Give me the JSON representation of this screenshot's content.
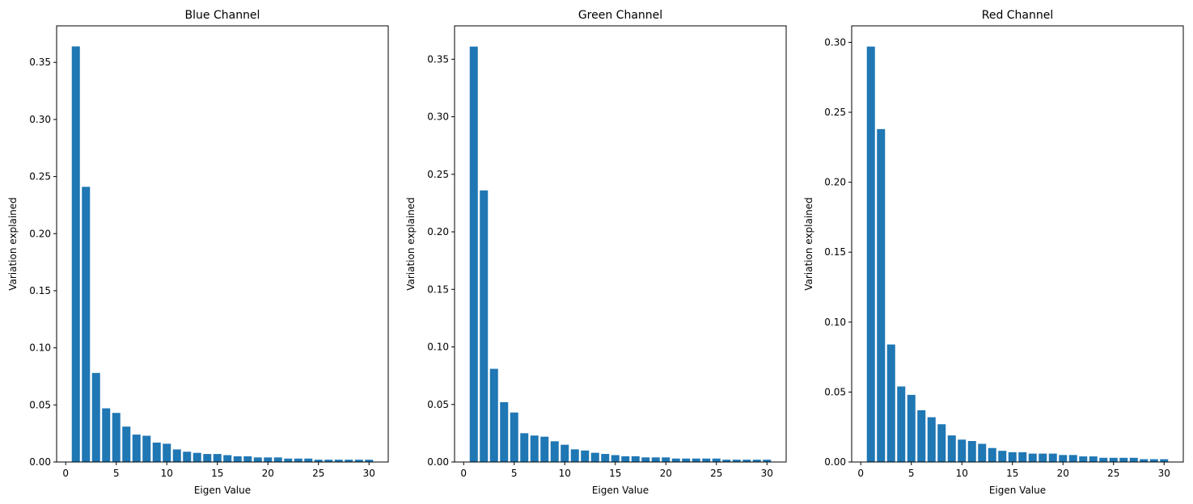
{
  "chart_data": [
    {
      "type": "bar",
      "title": "Blue Channel",
      "xlabel": "Eigen Value",
      "ylabel": "Variation explained",
      "xlim": [
        -0.9,
        31.9
      ],
      "ylim": [
        0,
        0.382
      ],
      "xticks": [
        0,
        5,
        10,
        15,
        20,
        25,
        30
      ],
      "yticks": [
        0.0,
        0.05,
        0.1,
        0.15,
        0.2,
        0.25,
        0.3,
        0.35
      ],
      "ytick_labels": [
        "0.00",
        "0.05",
        "0.10",
        "0.15",
        "0.20",
        "0.25",
        "0.30",
        "0.35"
      ],
      "color": "#1f77b4",
      "x": [
        1,
        2,
        3,
        4,
        5,
        6,
        7,
        8,
        9,
        10,
        11,
        12,
        13,
        14,
        15,
        16,
        17,
        18,
        19,
        20,
        21,
        22,
        23,
        24,
        25,
        26,
        27,
        28,
        29,
        30
      ],
      "values": [
        0.364,
        0.241,
        0.078,
        0.047,
        0.043,
        0.031,
        0.024,
        0.023,
        0.017,
        0.016,
        0.011,
        0.009,
        0.008,
        0.007,
        0.007,
        0.006,
        0.005,
        0.005,
        0.004,
        0.004,
        0.004,
        0.003,
        0.003,
        0.003,
        0.002,
        0.002,
        0.002,
        0.002,
        0.002,
        0.002
      ]
    },
    {
      "type": "bar",
      "title": "Green Channel",
      "xlabel": "Eigen Value",
      "ylabel": "Variation explained",
      "xlim": [
        -0.9,
        31.9
      ],
      "ylim": [
        0,
        0.379
      ],
      "xticks": [
        0,
        5,
        10,
        15,
        20,
        25,
        30
      ],
      "yticks": [
        0.0,
        0.05,
        0.1,
        0.15,
        0.2,
        0.25,
        0.3,
        0.35
      ],
      "ytick_labels": [
        "0.00",
        "0.05",
        "0.10",
        "0.15",
        "0.20",
        "0.25",
        "0.30",
        "0.35"
      ],
      "color": "#1f77b4",
      "x": [
        1,
        2,
        3,
        4,
        5,
        6,
        7,
        8,
        9,
        10,
        11,
        12,
        13,
        14,
        15,
        16,
        17,
        18,
        19,
        20,
        21,
        22,
        23,
        24,
        25,
        26,
        27,
        28,
        29,
        30
      ],
      "values": [
        0.361,
        0.236,
        0.081,
        0.052,
        0.043,
        0.025,
        0.023,
        0.022,
        0.018,
        0.015,
        0.011,
        0.01,
        0.008,
        0.007,
        0.006,
        0.005,
        0.005,
        0.004,
        0.004,
        0.004,
        0.003,
        0.003,
        0.003,
        0.003,
        0.003,
        0.002,
        0.002,
        0.002,
        0.002,
        0.002
      ]
    },
    {
      "type": "bar",
      "title": "Red Channel",
      "xlabel": "Eigen Value",
      "ylabel": "Variation explained",
      "xlim": [
        -0.9,
        31.9
      ],
      "ylim": [
        0,
        0.3118
      ],
      "xticks": [
        0,
        5,
        10,
        15,
        20,
        25,
        30
      ],
      "yticks": [
        0.0,
        0.05,
        0.1,
        0.15,
        0.2,
        0.25,
        0.3
      ],
      "ytick_labels": [
        "0.00",
        "0.05",
        "0.10",
        "0.15",
        "0.20",
        "0.25",
        "0.30"
      ],
      "color": "#1f77b4",
      "x": [
        1,
        2,
        3,
        4,
        5,
        6,
        7,
        8,
        9,
        10,
        11,
        12,
        13,
        14,
        15,
        16,
        17,
        18,
        19,
        20,
        21,
        22,
        23,
        24,
        25,
        26,
        27,
        28,
        29,
        30
      ],
      "values": [
        0.297,
        0.238,
        0.084,
        0.054,
        0.048,
        0.037,
        0.032,
        0.027,
        0.019,
        0.016,
        0.015,
        0.013,
        0.01,
        0.008,
        0.007,
        0.007,
        0.006,
        0.006,
        0.006,
        0.005,
        0.005,
        0.004,
        0.004,
        0.003,
        0.003,
        0.003,
        0.003,
        0.002,
        0.002,
        0.002
      ]
    }
  ]
}
